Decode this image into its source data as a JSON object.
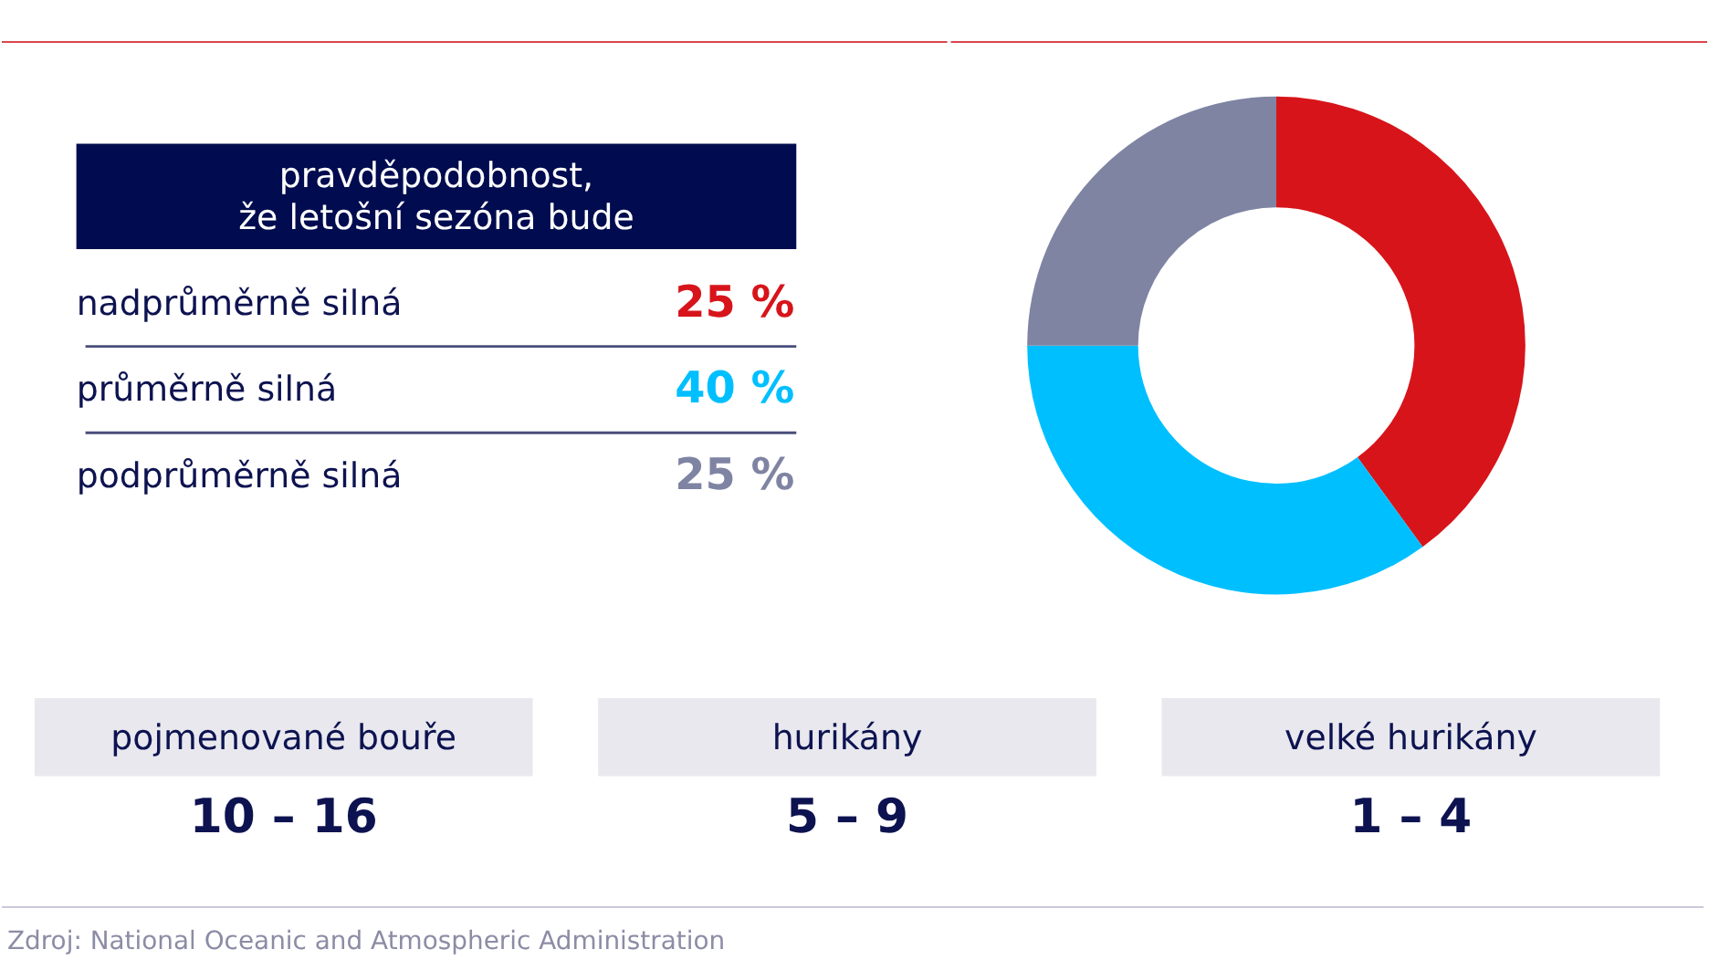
{
  "chart_data": [
    {
      "type": "other",
      "title": "pravděpodobnost,\nže letošní sezóna bude",
      "categories": [
        "nadprůměrně silná",
        "průměrně silná",
        "podprůměrně silná"
      ],
      "value_labels": [
        "25 %",
        "40 %",
        "25 %"
      ],
      "colors": [
        "#d7141a",
        "#00bfff",
        "#7f84a3"
      ]
    },
    {
      "type": "donut",
      "categories": [
        null,
        null,
        null
      ],
      "values": [
        40,
        35,
        25
      ],
      "colors": [
        "#d7141a",
        "#00bfff",
        "#7f84a3"
      ]
    },
    {
      "type": "other",
      "categories": [
        "pojmenované bouře",
        "hurikány",
        "velké hurikány"
      ],
      "value_labels": [
        "10 – 16",
        "5 – 9",
        "1 – 4"
      ],
      "annotations": [
        "Zdroj: National Oceanic and Atmospheric Administration"
      ]
    }
  ]
}
